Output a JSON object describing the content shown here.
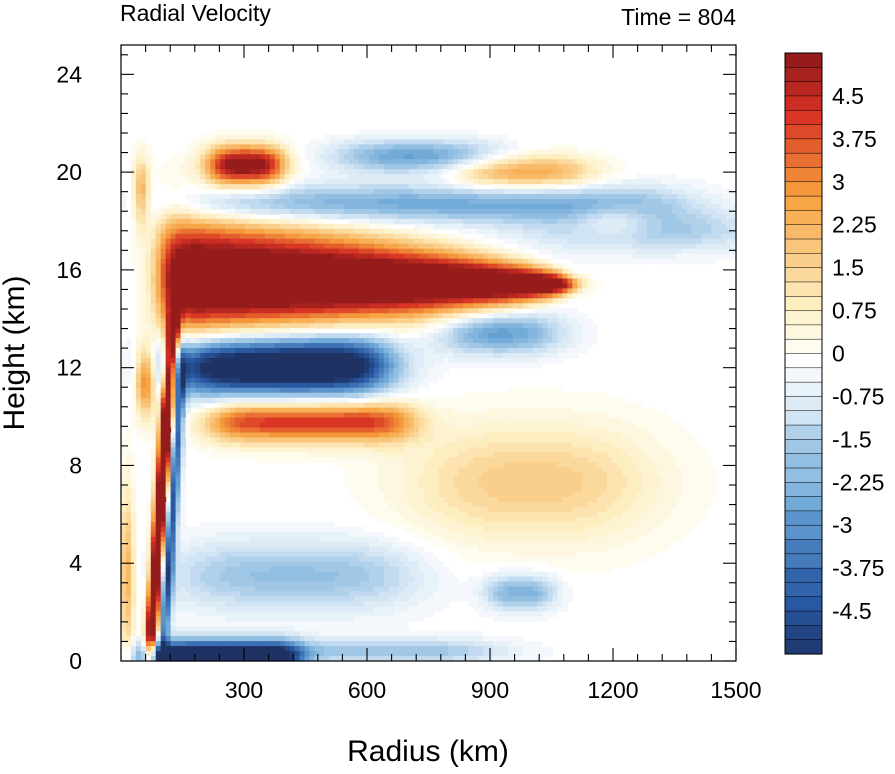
{
  "chart_data": {
    "type": "heatmap",
    "title_left": "Radial Velocity",
    "title_right": "Time = 804",
    "xlabel": "Radius (km)",
    "ylabel": "Height (km)",
    "xlim": [
      0,
      1500
    ],
    "ylim": [
      0,
      25.2
    ],
    "x_ticks": [
      300,
      600,
      900,
      1200,
      1500
    ],
    "x_tick_labels": [
      "300",
      "600",
      "900",
      "1200",
      "1500"
    ],
    "y_ticks": [
      0,
      4,
      8,
      12,
      16,
      20,
      24
    ],
    "y_tick_labels": [
      "0",
      "4",
      "8",
      "12",
      "16",
      "20",
      "24"
    ],
    "colorbar": {
      "min": -5.25,
      "max": 5.25,
      "step": 0.25,
      "labels": [
        "4.5",
        "3.75",
        "3",
        "2.25",
        "1.5",
        "0.75",
        "0",
        "-0.75",
        "-1.5",
        "-2.25",
        "-3",
        "-3.75",
        "-4.5"
      ],
      "label_values": [
        4.5,
        3.75,
        3,
        2.25,
        1.5,
        0.75,
        0,
        -0.75,
        -1.5,
        -2.25,
        -3,
        -3.75,
        -4.5
      ],
      "colormap": "BlueWhiteOrangeRed",
      "colors": {
        "neg_max": "#1e3264",
        "neg_high": "#2a5aa6",
        "neg_mid": "#6aa6d6",
        "neg_low": "#d4e6f4",
        "zero": "#ffffff",
        "pos_low": "#fdf0c4",
        "pos_mid": "#f6a03c",
        "pos_high": "#d83224",
        "pos_max": "#961c1c"
      }
    },
    "features": [
      {
        "name": "upper-level outflow",
        "sign": "positive",
        "r_range": [
          100,
          1100
        ],
        "z_range": [
          13.5,
          17.5
        ],
        "peak": 5.25
      },
      {
        "name": "mid-level inflow",
        "sign": "negative",
        "r_range": [
          130,
          620
        ],
        "z_range": [
          10.5,
          13.5
        ],
        "peak": -5.25
      },
      {
        "name": "boundary-layer inflow",
        "sign": "negative",
        "r_range": [
          60,
          420
        ],
        "z_range": [
          0,
          0.8
        ],
        "peak": -5.25
      },
      {
        "name": "eyewall outflow jet",
        "sign": "positive",
        "r_range": [
          60,
          110
        ],
        "z_range": [
          0,
          16
        ],
        "peak": 5.25
      },
      {
        "name": "mid-level outflow",
        "sign": "positive",
        "r_range": [
          220,
          700
        ],
        "z_range": [
          9,
          10.5
        ],
        "peak": 3.5
      },
      {
        "name": "upper outflow band",
        "sign": "positive",
        "r_range": [
          200,
          400
        ],
        "z_range": [
          19.5,
          21
        ],
        "peak": 4.5
      }
    ]
  }
}
